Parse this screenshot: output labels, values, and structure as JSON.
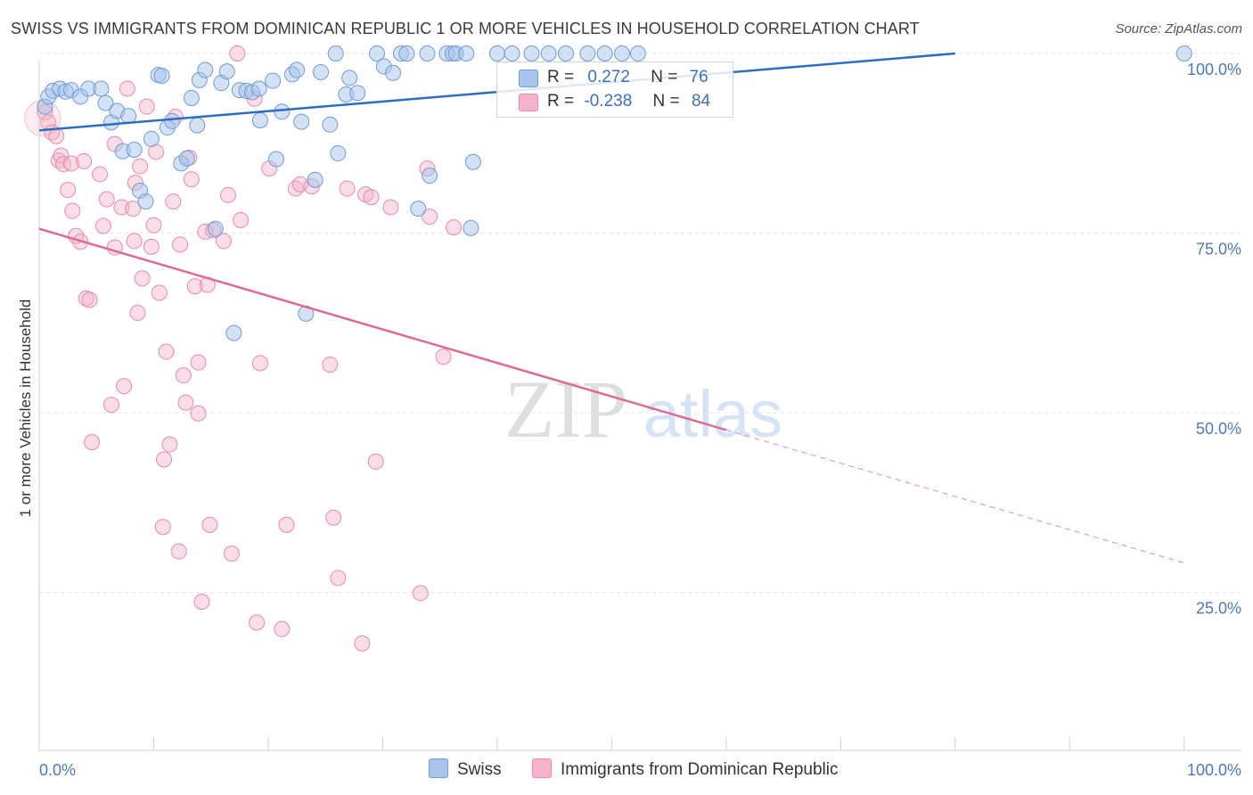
{
  "title": "SWISS VS IMMIGRANTS FROM DOMINICAN REPUBLIC 1 OR MORE VEHICLES IN HOUSEHOLD CORRELATION CHART",
  "source": "Source: ZipAtlas.com",
  "watermark": {
    "zip": "ZIP",
    "atlas": "atlas"
  },
  "legend": {
    "r_label": "R =",
    "n_label": "N =",
    "swiss": {
      "r": "0.272",
      "n": "76"
    },
    "dominican": {
      "r": "-0.238",
      "n": "84"
    }
  },
  "bottom_legend": {
    "swiss": "Swiss",
    "dominican": "Immigrants from Dominican Republic"
  },
  "colors": {
    "swiss_fill": "#a8c4ec",
    "swiss_stroke": "#6f9ad8",
    "swiss_line": "#2d6cc4",
    "dom_fill": "#f5b3c8",
    "dom_stroke": "#e88aa8",
    "dom_line": "#de6a92",
    "axis_label": "#4a78c2",
    "grid": "#e3e3e3"
  },
  "chart_data": {
    "type": "scatter",
    "title": "SWISS VS IMMIGRANTS FROM DOMINICAN REPUBLIC 1 OR MORE VEHICLES IN HOUSEHOLD CORRELATION CHART",
    "xlabel": "",
    "ylabel": "1 or more Vehicles in Household",
    "xlim": [
      0,
      105
    ],
    "ylim": [
      3,
      100
    ],
    "x_tick_labels": [
      {
        "value": 0,
        "label": "0.0%"
      },
      {
        "value": 100,
        "label": "100.0%"
      }
    ],
    "y_tick_labels": [
      {
        "value": 100,
        "label": "100.0%"
      },
      {
        "value": 75,
        "label": "75.0%"
      },
      {
        "value": 50,
        "label": "50.0%"
      },
      {
        "value": 25,
        "label": "25.0%"
      }
    ],
    "series": [
      {
        "name": "Swiss",
        "trend": {
          "x0": 0,
          "y0": 89.3,
          "x1": 80,
          "y1": 100
        },
        "points": [
          [
            0.5,
            92.6
          ],
          [
            0.8,
            94
          ],
          [
            1.2,
            94.8
          ],
          [
            1.8,
            95.1
          ],
          [
            2.3,
            94.7
          ],
          [
            2.8,
            94.9
          ],
          [
            3.6,
            94
          ],
          [
            4.3,
            95.1
          ],
          [
            5.4,
            95.1
          ],
          [
            5.8,
            93.1
          ],
          [
            6.3,
            90.4
          ],
          [
            6.8,
            92
          ],
          [
            7.3,
            86.4
          ],
          [
            7.8,
            91.3
          ],
          [
            8.3,
            86.6
          ],
          [
            8.8,
            80.9
          ],
          [
            9.3,
            79.4
          ],
          [
            9.8,
            88.1
          ],
          [
            10.4,
            97
          ],
          [
            10.7,
            96.9
          ],
          [
            11.2,
            89.7
          ],
          [
            11.6,
            90.6
          ],
          [
            12.4,
            84.7
          ],
          [
            12.9,
            85.4
          ],
          [
            13.3,
            93.8
          ],
          [
            13.8,
            90
          ],
          [
            14,
            96.3
          ],
          [
            14.5,
            97.7
          ],
          [
            15.4,
            75.6
          ],
          [
            15.9,
            95.9
          ],
          [
            16.4,
            97.5
          ],
          [
            17,
            61.1
          ],
          [
            17.5,
            94.9
          ],
          [
            18.1,
            94.8
          ],
          [
            18.6,
            94.6
          ],
          [
            19.2,
            95.1
          ],
          [
            19.3,
            90.7
          ],
          [
            20.4,
            96.2
          ],
          [
            20.7,
            85.3
          ],
          [
            21.2,
            91.9
          ],
          [
            22.1,
            97.1
          ],
          [
            22.5,
            97.7
          ],
          [
            22.9,
            90.5
          ],
          [
            23.3,
            63.8
          ],
          [
            24.1,
            82.4
          ],
          [
            24.6,
            97.4
          ],
          [
            25.4,
            90.1
          ],
          [
            25.9,
            100
          ],
          [
            26.1,
            86.1
          ],
          [
            26.8,
            94.3
          ],
          [
            27.1,
            96.6
          ],
          [
            27.8,
            94.5
          ],
          [
            29.5,
            100
          ],
          [
            30.1,
            98.2
          ],
          [
            30.9,
            97.3
          ],
          [
            31.6,
            100
          ],
          [
            32.1,
            100
          ],
          [
            33.9,
            100
          ],
          [
            34.1,
            83
          ],
          [
            35.6,
            100
          ],
          [
            36.1,
            100
          ],
          [
            36.4,
            100
          ],
          [
            37.3,
            100
          ],
          [
            37.7,
            75.7
          ],
          [
            37.9,
            84.9
          ],
          [
            40,
            100
          ],
          [
            41.3,
            100
          ],
          [
            43,
            100
          ],
          [
            44.5,
            100
          ],
          [
            46,
            100
          ],
          [
            47.9,
            100
          ],
          [
            49.4,
            100
          ],
          [
            50.9,
            100
          ],
          [
            52.3,
            100
          ],
          [
            100,
            100
          ],
          [
            33.1,
            78.4
          ]
        ]
      },
      {
        "name": "Immigrants from Dominican Republic",
        "trend": {
          "x0": 0,
          "y0": 75.6,
          "x1": 60,
          "y1": 47.6
        },
        "trend_dashed": {
          "x0": 60,
          "y0": 47.6,
          "x1": 100,
          "y1": 29.1
        },
        "points": [
          [
            0.5,
            91.8
          ],
          [
            0.8,
            90.4
          ],
          [
            1.1,
            89
          ],
          [
            1.5,
            88.5
          ],
          [
            1.7,
            85.1
          ],
          [
            1.9,
            85.8
          ],
          [
            2.1,
            84.6
          ],
          [
            2.5,
            81
          ],
          [
            2.8,
            84.7
          ],
          [
            2.9,
            78.1
          ],
          [
            3.2,
            74.6
          ],
          [
            3.6,
            73.8
          ],
          [
            3.9,
            85
          ],
          [
            4.1,
            65.9
          ],
          [
            4.4,
            65.7
          ],
          [
            5.3,
            83.2
          ],
          [
            5.6,
            76
          ],
          [
            5.9,
            79.7
          ],
          [
            6.3,
            51.1
          ],
          [
            6.6,
            73
          ],
          [
            7.2,
            78.6
          ],
          [
            7.4,
            53.7
          ],
          [
            7.7,
            95.1
          ],
          [
            8.2,
            78.4
          ],
          [
            8.3,
            73.9
          ],
          [
            8.6,
            63.9
          ],
          [
            8.8,
            84.3
          ],
          [
            9,
            68.7
          ],
          [
            9.4,
            92.6
          ],
          [
            9.8,
            73.1
          ],
          [
            10,
            76.1
          ],
          [
            10.2,
            86.3
          ],
          [
            10.5,
            66.7
          ],
          [
            10.8,
            34.1
          ],
          [
            11.1,
            58.5
          ],
          [
            11.4,
            45.6
          ],
          [
            11.7,
            79.4
          ],
          [
            11.9,
            91.2
          ],
          [
            12.3,
            73.4
          ],
          [
            12.6,
            55.2
          ],
          [
            12.8,
            51.4
          ],
          [
            13.1,
            85.5
          ],
          [
            13.3,
            82.5
          ],
          [
            13.6,
            67.6
          ],
          [
            13.9,
            49.9
          ],
          [
            14.2,
            23.7
          ],
          [
            14.5,
            75.2
          ],
          [
            14.7,
            67.8
          ],
          [
            14.9,
            34.4
          ],
          [
            15.2,
            75.4
          ],
          [
            16.1,
            73.9
          ],
          [
            16.5,
            80.3
          ],
          [
            16.8,
            30.4
          ],
          [
            17.3,
            100
          ],
          [
            17.6,
            76.8
          ],
          [
            18.8,
            93.7
          ],
          [
            19,
            20.8
          ],
          [
            19.3,
            56.9
          ],
          [
            20.1,
            84
          ],
          [
            21.2,
            19.9
          ],
          [
            21.6,
            34.4
          ],
          [
            22.4,
            81.2
          ],
          [
            22.8,
            81.8
          ],
          [
            23.8,
            81.5
          ],
          [
            25.4,
            56.7
          ],
          [
            25.7,
            35.4
          ],
          [
            26.1,
            27
          ],
          [
            26.9,
            81.2
          ],
          [
            28.2,
            17.9
          ],
          [
            28.5,
            80.4
          ],
          [
            29,
            80
          ],
          [
            29.4,
            43.2
          ],
          [
            30.7,
            78.6
          ],
          [
            33.3,
            24.9
          ],
          [
            33.9,
            84
          ],
          [
            34.1,
            77.3
          ],
          [
            35.3,
            57.8
          ],
          [
            36.2,
            75.8
          ],
          [
            4.6,
            45.9
          ],
          [
            6.6,
            87.4
          ],
          [
            8.4,
            82
          ],
          [
            10.9,
            43.5
          ],
          [
            12.2,
            30.7
          ],
          [
            13.9,
            57
          ]
        ]
      }
    ]
  }
}
